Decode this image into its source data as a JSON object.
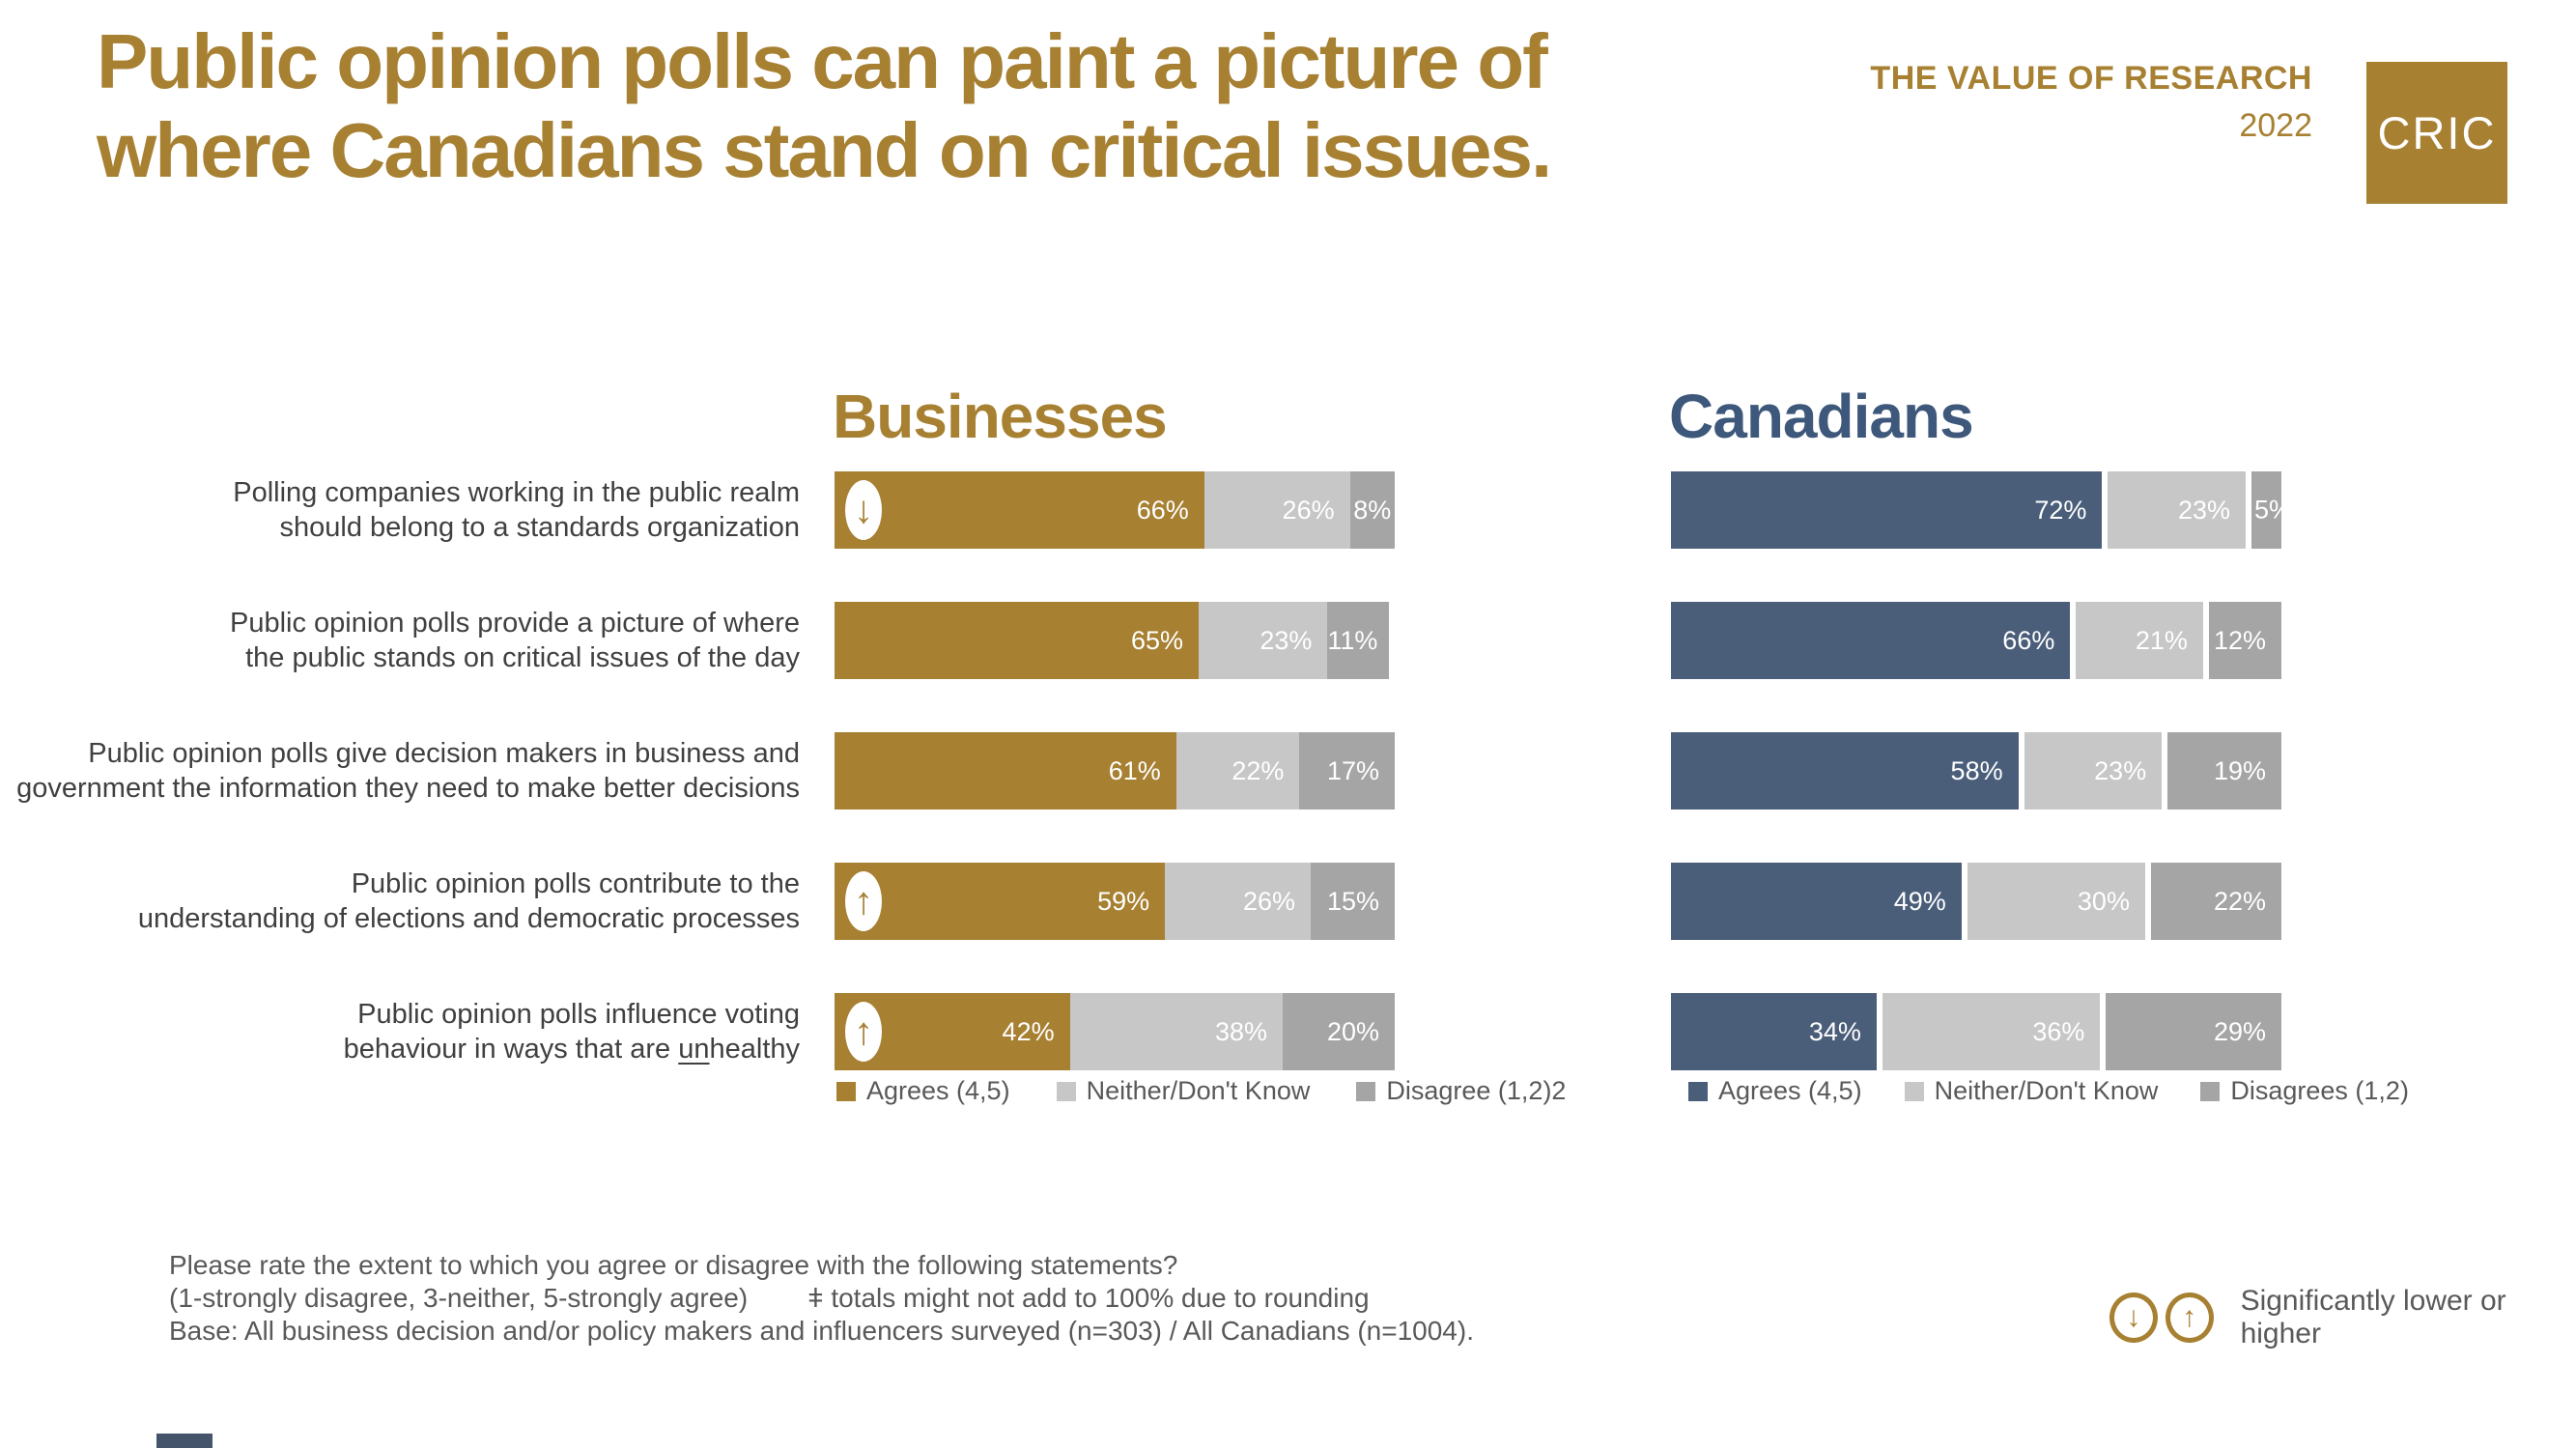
{
  "page": {
    "title_lines": [
      "Public opinion polls can paint a picture of",
      "where Canadians stand on critical issues."
    ],
    "program_title": "THE VALUE OF RESEARCH",
    "program_year": "2022",
    "logo_text": "CRIC"
  },
  "colors": {
    "gold": "#A78032",
    "navy": "#4A5E7A",
    "navy-header": "#3E587C",
    "light-gray": "#C7C7C7",
    "mid-gray": "#A5A5A5"
  },
  "chart_data": {
    "type": "bar",
    "variant": "horizontal-stacked",
    "unit": "percent",
    "xlim": [
      0,
      100
    ],
    "grid": false,
    "categories": [
      "Polling companies working in the public realm should belong to a standards organization",
      "Public opinion polls provide a picture of where the public stands on critical issues of the day",
      "Public opinion polls give decision makers in business and government the information they need to make better decisions",
      "Public opinion polls contribute to the understanding of elections and democratic processes",
      "Public opinion polls influence voting behaviour in ways that are unhealthy"
    ],
    "category_lines": [
      [
        "Polling companies working in the public realm",
        "should belong to a standards organization"
      ],
      [
        "Public opinion polls provide a picture of where",
        "the public stands on critical issues of the day"
      ],
      [
        "Public opinion polls give decision makers in business and",
        "government the information they need to make better decisions"
      ],
      [
        "Public opinion polls contribute to the",
        "understanding of elections and democratic processes"
      ],
      [
        "Public opinion polls influence voting",
        ""
      ]
    ],
    "statement5_line2_parts": {
      "pre": "behaviour in ways that are ",
      "underline": "un",
      "rest": "healthy"
    },
    "series_names": [
      "Agrees (4,5)",
      "Neither/Don't Know",
      "Disagree (1,2)"
    ],
    "groups": [
      {
        "name": "Businesses",
        "legend": [
          "Agrees (4,5)",
          "Neither/Don't Know",
          "Disagree (1,2)2"
        ],
        "rows": [
          {
            "arrow": "down",
            "values": [
              66,
              26,
              8
            ],
            "labels": [
              "66%",
              "26%",
              "8%"
            ]
          },
          {
            "arrow": null,
            "values": [
              65,
              23,
              11
            ],
            "labels": [
              "65%",
              "23%",
              "11%"
            ]
          },
          {
            "arrow": null,
            "values": [
              61,
              22,
              17
            ],
            "labels": [
              "61%",
              "22%",
              "17%"
            ]
          },
          {
            "arrow": "up",
            "values": [
              59,
              26,
              15
            ],
            "labels": [
              "59%",
              "26%",
              "15%"
            ]
          },
          {
            "arrow": "up",
            "values": [
              42,
              38,
              20
            ],
            "labels": [
              "42%",
              "38%",
              "20%"
            ]
          }
        ]
      },
      {
        "name": "Canadians",
        "legend": [
          "Agrees (4,5)",
          "Neither/Don't Know",
          "Disagrees (1,2)"
        ],
        "rows": [
          {
            "arrow": null,
            "values": [
              72,
              23,
              5
            ],
            "labels": [
              "72%",
              "23%",
              "5%"
            ]
          },
          {
            "arrow": null,
            "values": [
              66,
              21,
              12
            ],
            "labels": [
              "66%",
              "21%",
              "12%"
            ]
          },
          {
            "arrow": null,
            "values": [
              58,
              23,
              19
            ],
            "labels": [
              "58%",
              "23%",
              "19%"
            ]
          },
          {
            "arrow": null,
            "values": [
              49,
              30,
              22
            ],
            "labels": [
              "49%",
              "30%",
              "22%"
            ]
          },
          {
            "arrow": null,
            "values": [
              34,
              36,
              29
            ],
            "labels": [
              "34%",
              "36%",
              "29%"
            ]
          }
        ]
      }
    ]
  },
  "footer": {
    "question": "Please rate the extent to which you agree or disagree with the following statements?",
    "scale_note": "(1-strongly disagree, 3-neither, 5-strongly agree)",
    "rounding_note": "ǂ totals might not add to 100% due to rounding",
    "base_note": "Base: All business decision and/or policy makers and influencers surveyed (n=303) / All Canadians (n=1004).",
    "significance_label": "Significantly lower or higher"
  }
}
